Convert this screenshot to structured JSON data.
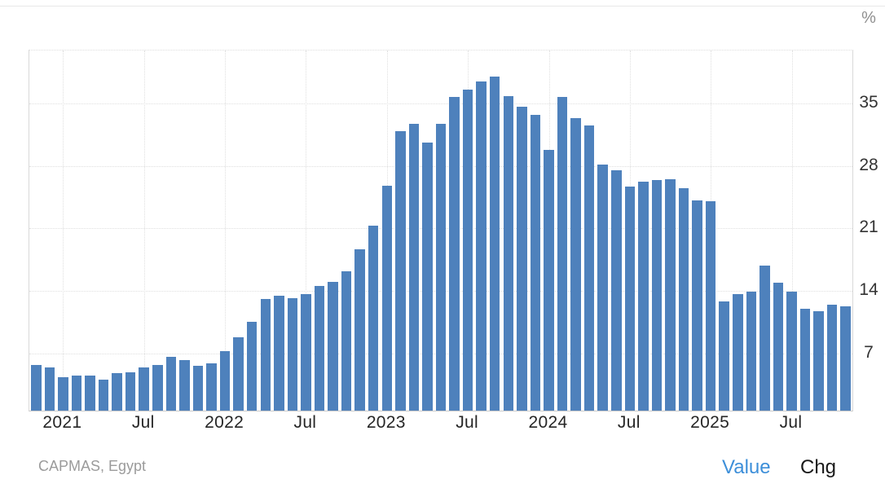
{
  "page": {
    "unit_label": "%",
    "source": "CAPMAS, Egypt",
    "footer": {
      "value_label": "Value",
      "chg_label": "Chg"
    }
  },
  "colors": {
    "bar": "#4E81BC",
    "value_link": "#3D8FD9",
    "chg_link": "#1a1a1a",
    "axis_text": "#333333",
    "source_text": "#9b9b9b",
    "gridline": "#dfdfdf"
  },
  "chart_data": {
    "type": "bar",
    "unit": "%",
    "source": "CAPMAS, Egypt",
    "ylim": [
      0.6,
      40.9
    ],
    "yticks": [
      7,
      14,
      21,
      28,
      35
    ],
    "grid": "dotted",
    "legend": "none",
    "xticks": [
      {
        "index": 2,
        "label": "2021"
      },
      {
        "index": 8,
        "label": "Jul"
      },
      {
        "index": 14,
        "label": "2022"
      },
      {
        "index": 20,
        "label": "Jul"
      },
      {
        "index": 26,
        "label": "2023"
      },
      {
        "index": 32,
        "label": "Jul"
      },
      {
        "index": 38,
        "label": "2024"
      },
      {
        "index": 44,
        "label": "Jul"
      },
      {
        "index": 50,
        "label": "2025"
      },
      {
        "index": 56,
        "label": "Jul"
      }
    ],
    "months": [
      "2020-11",
      "2020-12",
      "2021-01",
      "2021-02",
      "2021-03",
      "2021-04",
      "2021-05",
      "2021-06",
      "2021-07",
      "2021-08",
      "2021-09",
      "2021-10",
      "2021-11",
      "2021-12",
      "2022-01",
      "2022-02",
      "2022-03",
      "2022-04",
      "2022-05",
      "2022-06",
      "2022-07",
      "2022-08",
      "2022-09",
      "2022-10",
      "2022-11",
      "2022-12",
      "2023-01",
      "2023-02",
      "2023-03",
      "2023-04",
      "2023-05",
      "2023-06",
      "2023-07",
      "2023-08",
      "2023-09",
      "2023-10",
      "2023-11",
      "2023-12",
      "2024-01",
      "2024-02",
      "2024-03",
      "2024-04",
      "2024-05",
      "2024-06",
      "2024-07",
      "2024-08",
      "2024-09",
      "2024-10",
      "2024-11",
      "2024-12",
      "2025-01",
      "2025-02",
      "2025-03",
      "2025-04",
      "2025-05",
      "2025-06",
      "2025-07",
      "2025-08",
      "2025-09",
      "2025-10",
      "2025-11"
    ],
    "values": [
      5.7,
      5.4,
      4.3,
      4.5,
      4.5,
      4.1,
      4.8,
      4.9,
      5.4,
      5.7,
      6.6,
      6.3,
      5.6,
      5.9,
      7.3,
      8.8,
      10.5,
      13.1,
      13.5,
      13.2,
      13.6,
      14.6,
      15.0,
      16.2,
      18.7,
      21.3,
      25.8,
      31.9,
      32.7,
      30.6,
      32.7,
      35.7,
      36.5,
      37.4,
      38.0,
      35.8,
      34.6,
      33.7,
      29.8,
      35.7,
      33.3,
      32.5,
      28.1,
      27.5,
      25.7,
      26.2,
      26.4,
      26.5,
      25.5,
      24.1,
      24.0,
      12.8,
      13.6,
      13.9,
      16.8,
      14.9,
      13.9,
      12.0,
      11.7,
      12.5,
      12.3
    ]
  }
}
